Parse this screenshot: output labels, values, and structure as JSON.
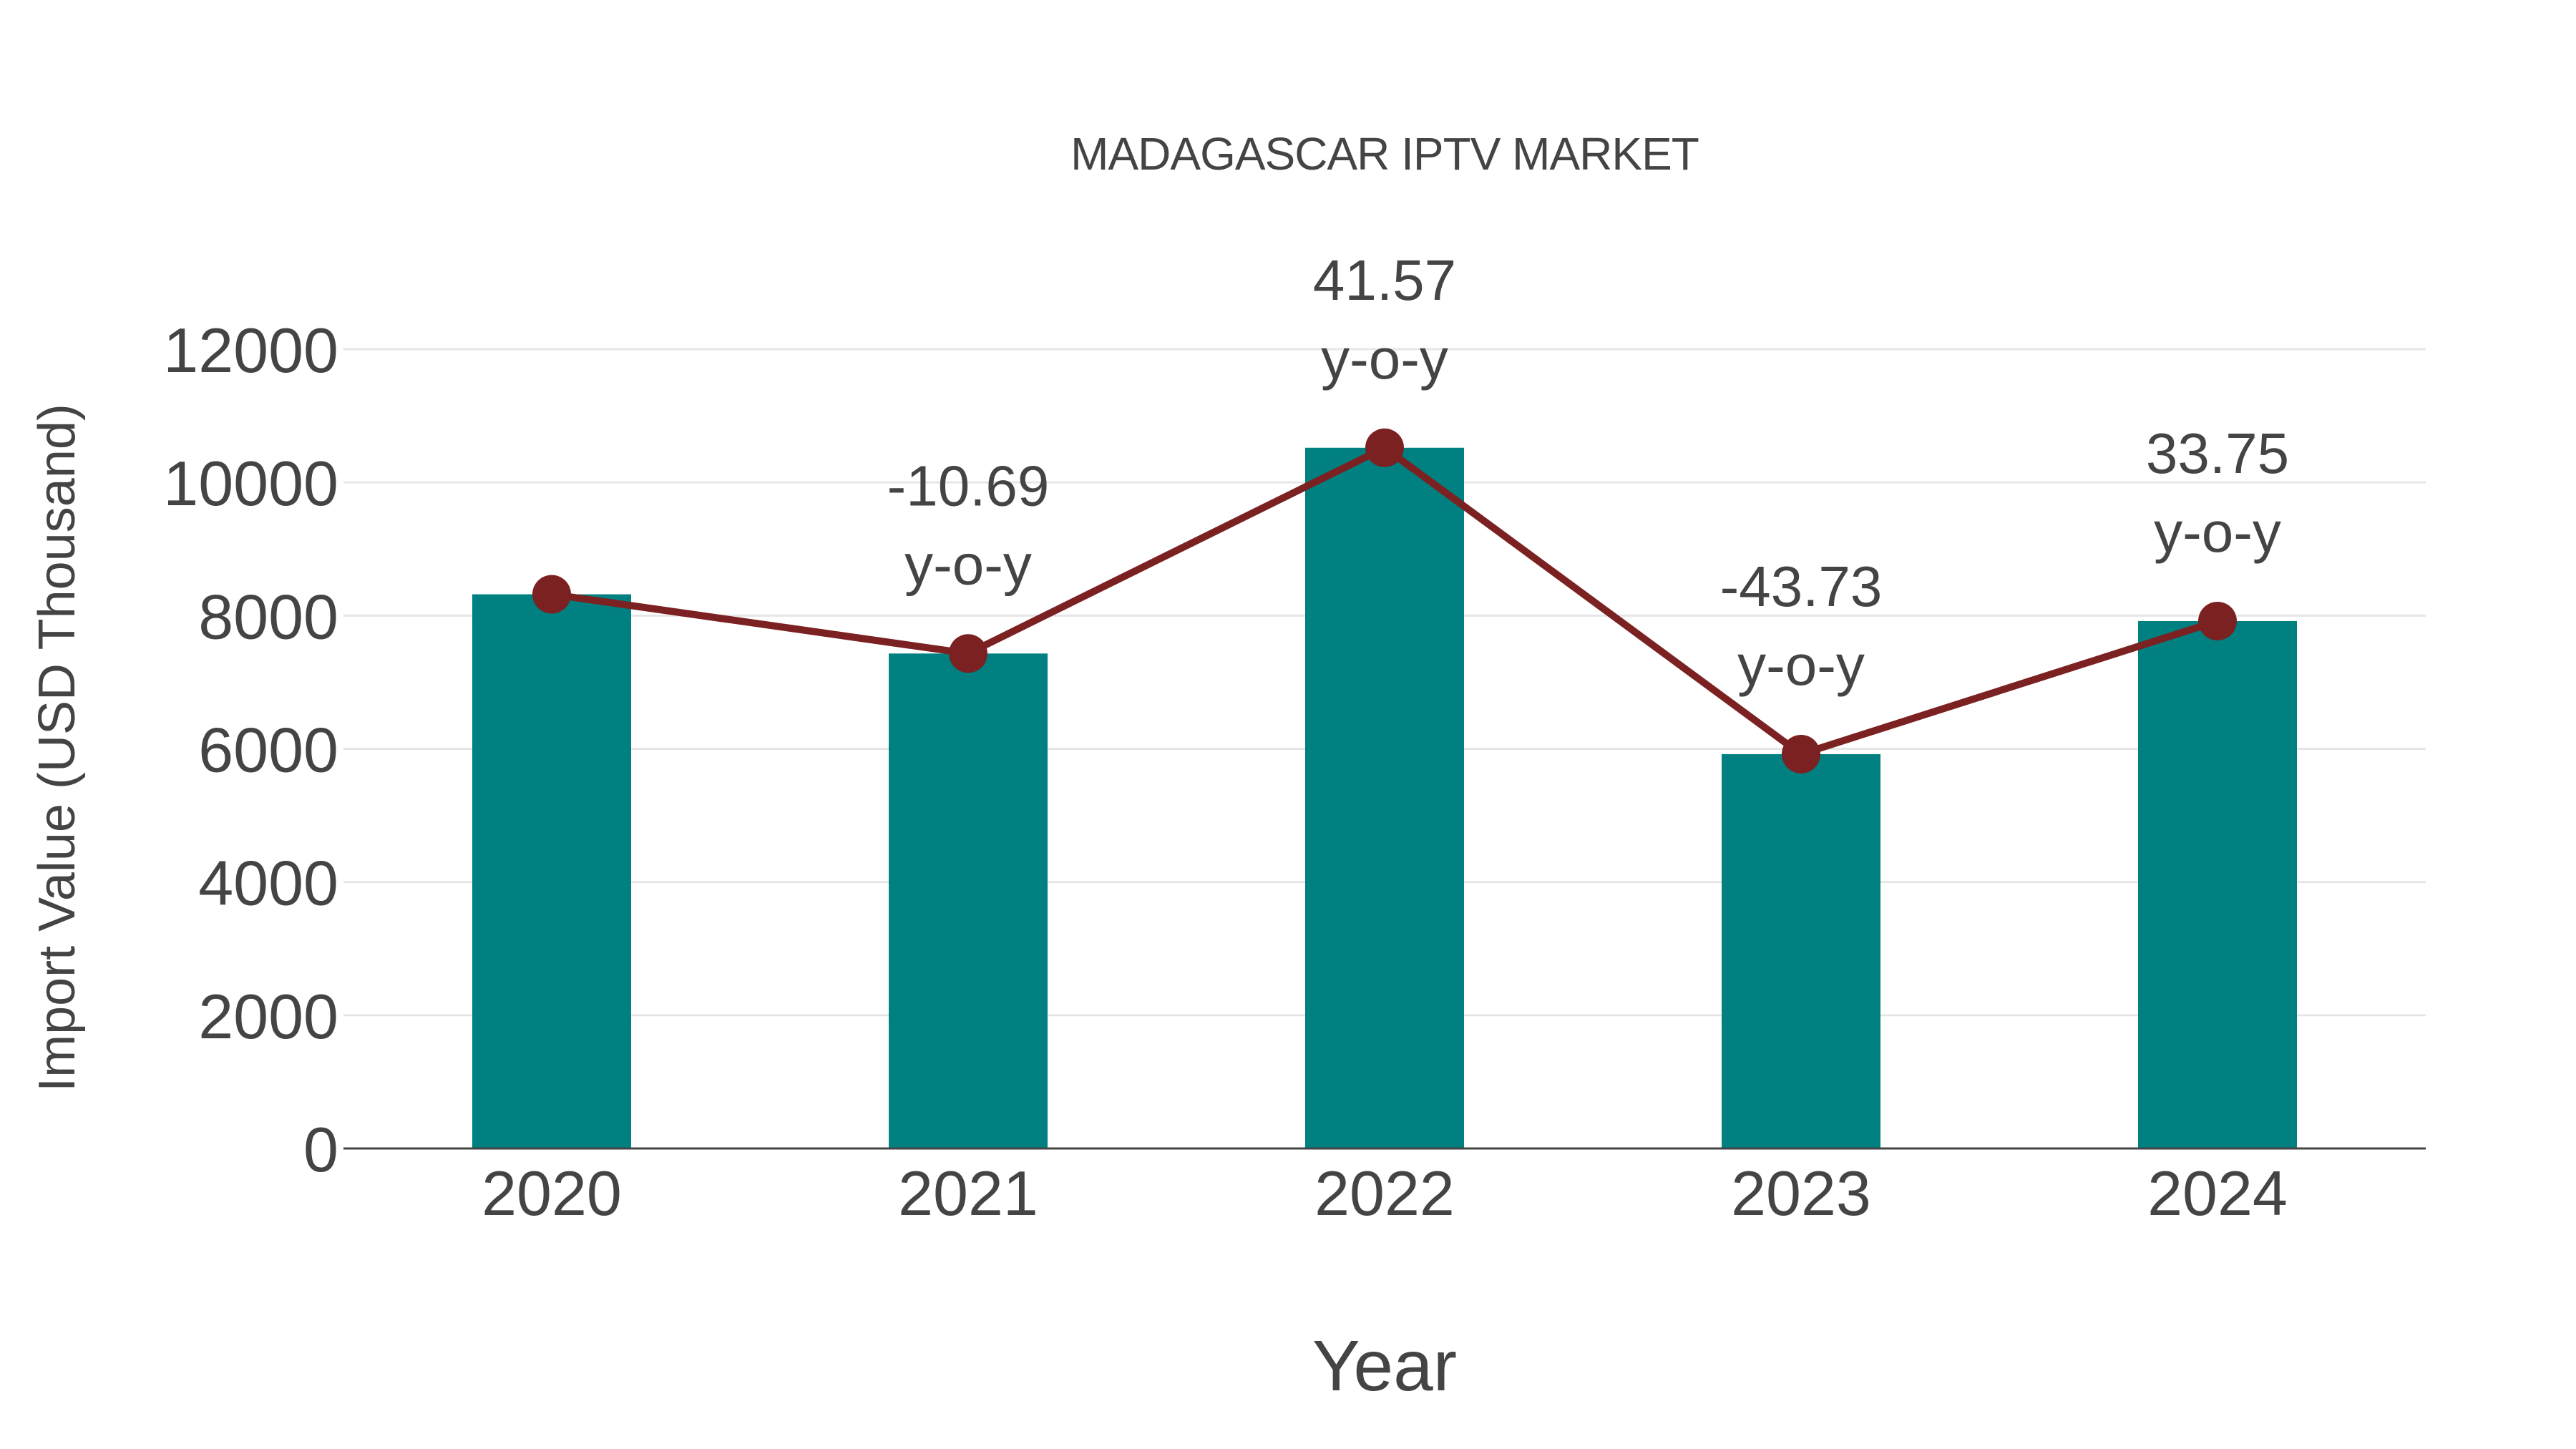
{
  "title": "MADAGASCAR IPTV MARKET",
  "x_axis_title": "Year",
  "y_axis_title": "Import Value (USD Thousand)",
  "colors": {
    "bar": "#008080",
    "line": "#7B2121",
    "gridline": "#e6e6e6",
    "axis_line": "#444444",
    "text": "#444444"
  },
  "annotation_suffix": "y-o-y",
  "chart_data": {
    "type": "bar",
    "title": "MADAGASCAR IPTV MARKET",
    "xlabel": "Year",
    "ylabel": "Import Value (USD Thousand)",
    "categories": [
      "2020",
      "2021",
      "2022",
      "2023",
      "2024"
    ],
    "ylim": [
      0,
      12000
    ],
    "yticks": [
      0,
      2000,
      4000,
      6000,
      8000,
      10000,
      12000
    ],
    "grid": true,
    "legend": "none",
    "series": [
      {
        "name": "Import Value",
        "type": "bar",
        "values": [
          8320,
          7431,
          10520,
          5920,
          7918
        ]
      },
      {
        "name": "Import Value (trend)",
        "type": "line",
        "values": [
          8320,
          7431,
          10520,
          5920,
          7918
        ]
      }
    ],
    "annotations": [
      {
        "category": "2021",
        "yoy": "-10.69",
        "text": "-10.69 y-o-y"
      },
      {
        "category": "2022",
        "yoy": "41.57",
        "text": "41.57 y-o-y"
      },
      {
        "category": "2023",
        "yoy": "-43.73",
        "text": "-43.73 y-o-y"
      },
      {
        "category": "2024",
        "yoy": "33.75",
        "text": "33.75 y-o-y"
      }
    ]
  }
}
